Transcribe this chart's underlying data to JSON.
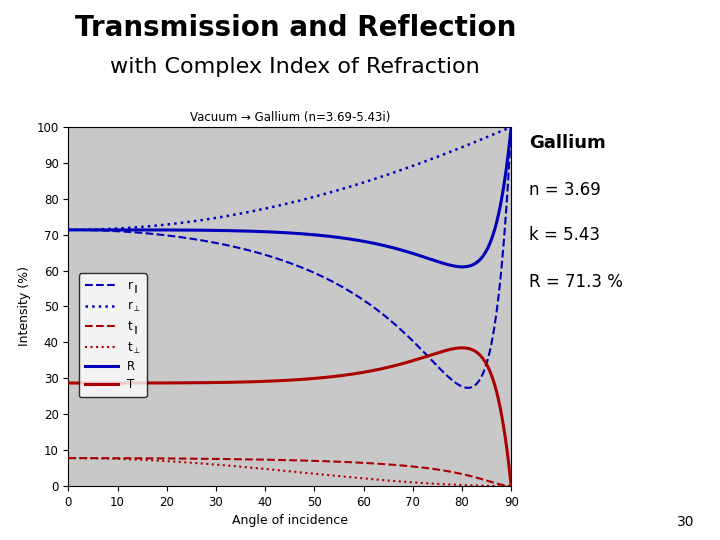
{
  "title_line1": "Transmission and Reflection",
  "title_line2": "with Complex Index of Refraction",
  "plot_title": "Vacuum → Gallium (n=3.69-5.43i)",
  "n1": 1.0,
  "n2_real": 3.69,
  "n2_imag": 5.43,
  "xlabel": "Angle of incidence",
  "ylabel": "Intensity (%)",
  "xlim": [
    0,
    90
  ],
  "ylim": [
    0,
    100
  ],
  "xticks": [
    0,
    10,
    20,
    30,
    40,
    50,
    60,
    70,
    80,
    90
  ],
  "yticks": [
    0,
    10,
    20,
    30,
    40,
    50,
    60,
    70,
    80,
    90,
    100
  ],
  "plot_bg": "#c8c8c8",
  "fig_bg": "#ffffff",
  "blue": "#0000bb",
  "red": "#aa0000",
  "annotation_text": [
    "Gallium",
    "n = 3.69",
    "k = 5.43",
    "R = 71.3 %"
  ],
  "page_number": "30"
}
